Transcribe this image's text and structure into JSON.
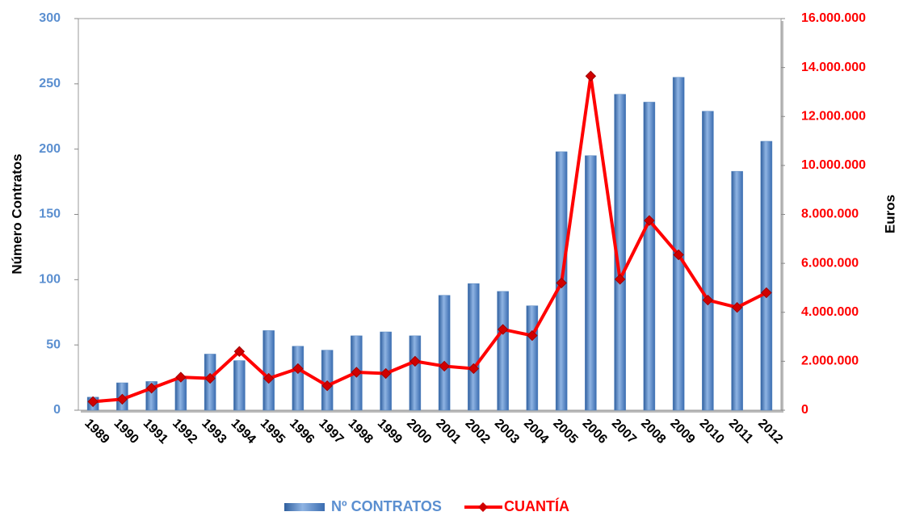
{
  "chart_data": {
    "type": "bar-line",
    "y_label": "Número Contratos",
    "y2_label": "Euros",
    "categories": [
      "1989",
      "1990",
      "1991",
      "1992",
      "1993",
      "1994",
      "1995",
      "1996",
      "1997",
      "1998",
      "1999",
      "2000",
      "2001",
      "2002",
      "2003",
      "2004",
      "2005",
      "2006",
      "2007",
      "2008",
      "2009",
      "2010",
      "2011",
      "2012"
    ],
    "series": [
      {
        "name": "Nº CONTRATOS",
        "kind": "bar",
        "color": "#4f81bd",
        "axis": "y",
        "values": [
          10,
          21,
          22,
          25,
          43,
          38,
          61,
          49,
          46,
          57,
          60,
          57,
          88,
          97,
          91,
          80,
          198,
          195,
          242,
          236,
          255,
          229,
          183,
          206
        ]
      },
      {
        "name": "CUANTÍA",
        "kind": "line",
        "color": "#ff0000",
        "axis": "y2",
        "values": [
          350000,
          450000,
          900000,
          1350000,
          1300000,
          2400000,
          1300000,
          1700000,
          1000000,
          1550000,
          1500000,
          2000000,
          1800000,
          1700000,
          3300000,
          3050000,
          5200000,
          13650000,
          5350000,
          7750000,
          6350000,
          4500000,
          4200000,
          4800000
        ]
      }
    ],
    "ylim": [
      0,
      300
    ],
    "yticks": [
      0,
      50,
      100,
      150,
      200,
      250,
      300
    ],
    "y2lim": [
      0,
      16000000
    ],
    "y2ticks": [
      0,
      {
        "value": 2000000,
        "label": "2.000.000"
      },
      {
        "value": 4000000,
        "label": "4.000.000"
      },
      {
        "value": 6000000,
        "label": "6.000.000"
      },
      {
        "value": 8000000,
        "label": "8.000.000"
      },
      {
        "value": 10000000,
        "label": "10.000.000"
      },
      {
        "value": 12000000,
        "label": "12.000.000"
      },
      {
        "value": 14000000,
        "label": "14.000.000"
      },
      {
        "value": 16000000,
        "label": "16.000.000"
      }
    ],
    "legend": "bottom"
  }
}
